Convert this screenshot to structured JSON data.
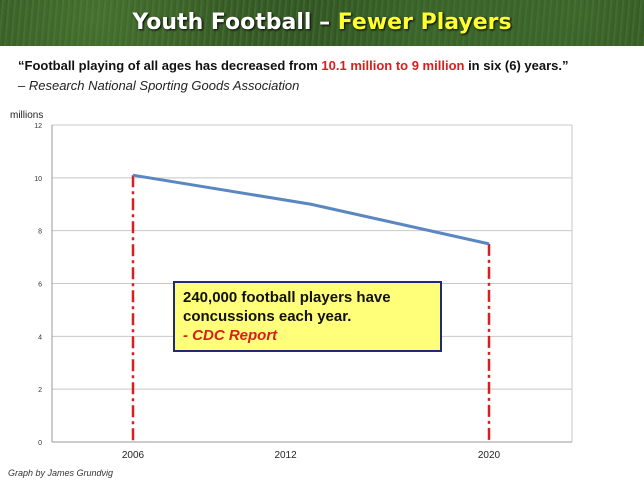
{
  "header": {
    "title_main": "Youth Football – ",
    "title_highlight": "Fewer Players"
  },
  "quote": {
    "part1": "“Football playing of all ages has decreased from ",
    "highlight": "10.1 million to 9 million",
    "part2": " in six (6) years.”",
    "attribution": "– Research National Sporting Goods Association"
  },
  "callout": {
    "line1": "240,000 football players have",
    "line2": "concussions each year.",
    "source": "-  CDC Report"
  },
  "credit": "Graph by James Grundvig",
  "colors": {
    "line": "#5a86c2",
    "marker": "#d81e1e",
    "highlight_red": "#d81e1e",
    "title_yellow": "#ffff33",
    "callout_bg": "#ffff7a",
    "callout_border": "#1e2a7a"
  },
  "chart_data": {
    "type": "line",
    "ylabel": "millions",
    "ylim": [
      0,
      12
    ],
    "yticks": [
      0,
      2,
      4,
      6,
      8,
      10,
      12
    ],
    "xlim": [
      2006,
      2020
    ],
    "xticks": [
      2006,
      2012,
      2020
    ],
    "grid": true,
    "series": [
      {
        "x": [
          2006,
          2013,
          2020
        ],
        "values": [
          10.1,
          9.0,
          7.5
        ]
      }
    ],
    "markers": [
      {
        "x": 2006,
        "value": 10.1
      },
      {
        "x": 2020,
        "value": 7.5
      }
    ]
  }
}
